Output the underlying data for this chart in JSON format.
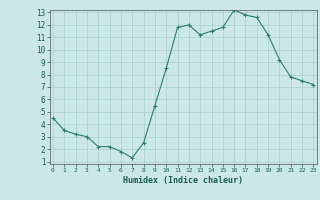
{
  "x": [
    0,
    1,
    2,
    3,
    4,
    5,
    6,
    7,
    8,
    9,
    10,
    11,
    12,
    13,
    14,
    15,
    16,
    17,
    18,
    19,
    20,
    21,
    22,
    23
  ],
  "y": [
    4.5,
    3.5,
    3.2,
    3.0,
    2.2,
    2.2,
    1.8,
    1.3,
    2.5,
    5.5,
    8.5,
    11.8,
    12.0,
    11.2,
    11.5,
    11.8,
    13.2,
    12.8,
    12.6,
    11.2,
    9.2,
    7.8,
    7.5,
    7.2
  ],
  "xlabel": "Humidex (Indice chaleur)",
  "ylim": [
    1,
    13
  ],
  "xlim": [
    -0.3,
    23.3
  ],
  "yticks": [
    1,
    2,
    3,
    4,
    5,
    6,
    7,
    8,
    9,
    10,
    11,
    12,
    13
  ],
  "xticks": [
    0,
    1,
    2,
    3,
    4,
    5,
    6,
    7,
    8,
    9,
    10,
    11,
    12,
    13,
    14,
    15,
    16,
    17,
    18,
    19,
    20,
    21,
    22,
    23
  ],
  "line_color": "#2e7d6e",
  "bg_color": "#cce8e6",
  "grid_color": "#aacfcc",
  "marker": "+"
}
